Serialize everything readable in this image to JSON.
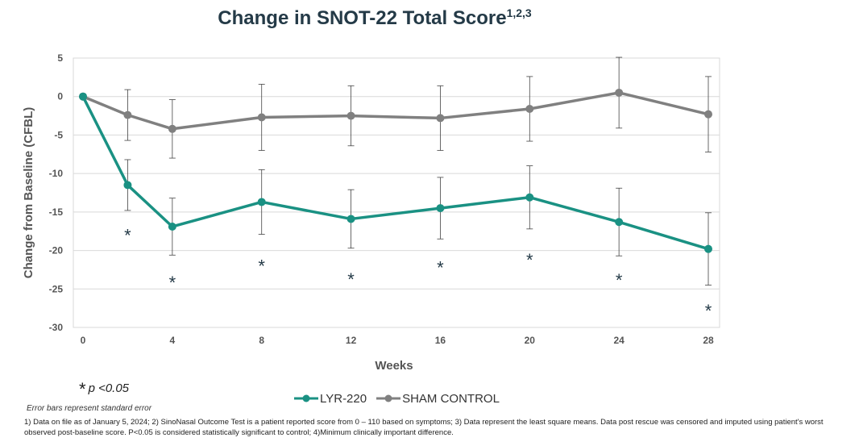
{
  "title": {
    "text": "Change in SNOT-22 Total Score",
    "superscript": "1,2,3"
  },
  "significance_note": {
    "symbol": "*",
    "text": "p <0.05"
  },
  "error_bar_note": "Error bars represent standard error",
  "footnote": "1) Data on file as of January 5, 2024; 2) SinoNasal Outcome Test is a patient reported score from 0 – 110 based on symptoms; 3) Data represent the least square means. Data post rescue was censored and imputed using patient's worst observed post-baseline score. P<0.05 is considered statistically significant to control; 4)Minimum clinically important difference.",
  "chart_data": {
    "type": "line",
    "title": "Change in SNOT-22 Total Score",
    "xlabel": "Weeks",
    "ylabel": "Change from Baseline (CFBL)",
    "xlim": [
      0,
      28
    ],
    "ylim": [
      -30,
      5
    ],
    "x_ticks": [
      0,
      4,
      8,
      12,
      16,
      20,
      24,
      28
    ],
    "y_ticks": [
      5,
      0,
      -5,
      -10,
      -15,
      -20,
      -25,
      -30
    ],
    "grid": true,
    "legend_position": "bottom-center",
    "series": [
      {
        "name": "LYR-220",
        "color": "#1a9183",
        "x": [
          0,
          2,
          4,
          8,
          12,
          16,
          20,
          24,
          28
        ],
        "values": [
          0,
          -11.5,
          -16.9,
          -13.7,
          -15.9,
          -14.5,
          -13.1,
          -16.3,
          -19.8
        ],
        "error": [
          0,
          3.3,
          3.7,
          4.2,
          3.8,
          4.0,
          4.1,
          4.4,
          4.7
        ]
      },
      {
        "name": "SHAM CONTROL",
        "color": "#808080",
        "x": [
          0,
          2,
          4,
          8,
          12,
          16,
          20,
          24,
          28
        ],
        "values": [
          0,
          -2.4,
          -4.2,
          -2.7,
          -2.5,
          -2.8,
          -1.6,
          0.5,
          -2.3
        ],
        "error": [
          0,
          3.3,
          3.8,
          4.3,
          3.9,
          4.2,
          4.2,
          4.6,
          4.9
        ]
      }
    ],
    "significance_markers": [
      {
        "x": 2,
        "y": -17.8,
        "label": "*"
      },
      {
        "x": 4,
        "y": -23.9,
        "label": "*"
      },
      {
        "x": 8,
        "y": -21.8,
        "label": "*"
      },
      {
        "x": 12,
        "y": -23.5,
        "label": "*"
      },
      {
        "x": 16,
        "y": -22.0,
        "label": "*"
      },
      {
        "x": 20,
        "y": -21.0,
        "label": "*"
      },
      {
        "x": 24,
        "y": -23.6,
        "label": "*"
      },
      {
        "x": 28,
        "y": -27.6,
        "label": "*"
      }
    ]
  }
}
